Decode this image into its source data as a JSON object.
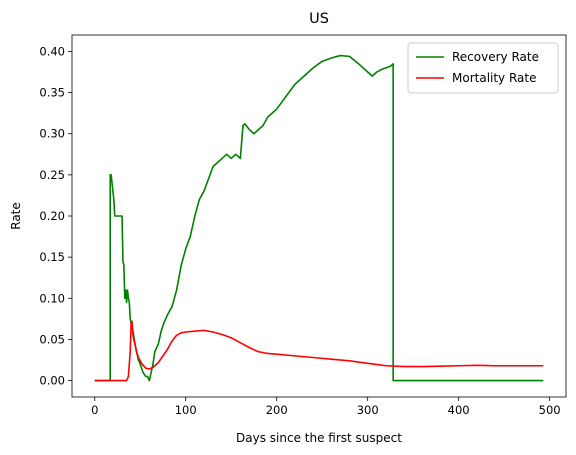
{
  "chart_data": {
    "type": "line",
    "title": "US",
    "xlabel": "Days since the first suspect",
    "ylabel": "Rate",
    "xlim": [
      -25,
      518
    ],
    "ylim": [
      -0.02,
      0.42
    ],
    "xticks": [
      0,
      100,
      200,
      300,
      400,
      500
    ],
    "xtick_labels": [
      "0",
      "100",
      "200",
      "300",
      "400",
      "500"
    ],
    "yticks": [
      0.0,
      0.05,
      0.1,
      0.15,
      0.2,
      0.25,
      0.3,
      0.35,
      0.4
    ],
    "ytick_labels": [
      "0.00",
      "0.05",
      "0.10",
      "0.15",
      "0.20",
      "0.25",
      "0.30",
      "0.35",
      "0.40"
    ],
    "grid": false,
    "legend_position": "upper right",
    "series": [
      {
        "name": "Recovery Rate",
        "color": "#008000",
        "x": [
          0,
          17,
          17,
          18,
          20,
          21,
          22,
          30,
          31,
          32,
          33,
          34,
          35,
          36,
          37,
          38,
          39,
          40,
          42,
          45,
          48,
          50,
          53,
          56,
          58,
          60,
          62,
          64,
          66,
          68,
          70,
          73,
          76,
          80,
          85,
          90,
          95,
          100,
          105,
          110,
          115,
          120,
          125,
          130,
          135,
          140,
          145,
          150,
          155,
          160,
          163,
          165,
          170,
          175,
          180,
          185,
          190,
          200,
          210,
          220,
          230,
          240,
          250,
          260,
          270,
          280,
          290,
          300,
          305,
          310,
          315,
          320,
          325,
          328,
          328,
          400,
          493
        ],
        "y": [
          0.0,
          0.0,
          0.25,
          0.25,
          0.23,
          0.22,
          0.2,
          0.2,
          0.145,
          0.14,
          0.1,
          0.11,
          0.095,
          0.11,
          0.1,
          0.095,
          0.075,
          0.07,
          0.06,
          0.04,
          0.025,
          0.02,
          0.01,
          0.005,
          0.005,
          0.0,
          0.01,
          0.02,
          0.035,
          0.04,
          0.045,
          0.06,
          0.07,
          0.08,
          0.09,
          0.11,
          0.14,
          0.16,
          0.175,
          0.2,
          0.22,
          0.23,
          0.245,
          0.26,
          0.265,
          0.27,
          0.275,
          0.27,
          0.275,
          0.27,
          0.31,
          0.312,
          0.305,
          0.3,
          0.305,
          0.31,
          0.32,
          0.33,
          0.345,
          0.36,
          0.37,
          0.38,
          0.388,
          0.392,
          0.395,
          0.394,
          0.385,
          0.375,
          0.37,
          0.375,
          0.378,
          0.38,
          0.382,
          0.385,
          0.0,
          0.0,
          0.0
        ]
      },
      {
        "name": "Mortality Rate",
        "color": "#ff0000",
        "x": [
          0,
          35,
          37,
          38,
          39,
          40,
          41,
          42,
          44,
          46,
          48,
          52,
          56,
          60,
          64,
          70,
          75,
          80,
          85,
          90,
          95,
          100,
          110,
          120,
          130,
          140,
          150,
          160,
          170,
          180,
          190,
          200,
          220,
          240,
          260,
          280,
          300,
          320,
          340,
          360,
          380,
          400,
          420,
          440,
          460,
          480,
          493
        ],
        "y": [
          0.0,
          0.0,
          0.005,
          0.02,
          0.035,
          0.07,
          0.072,
          0.055,
          0.045,
          0.035,
          0.028,
          0.02,
          0.015,
          0.014,
          0.016,
          0.022,
          0.03,
          0.038,
          0.048,
          0.055,
          0.058,
          0.059,
          0.06,
          0.061,
          0.059,
          0.056,
          0.052,
          0.046,
          0.04,
          0.035,
          0.033,
          0.032,
          0.03,
          0.028,
          0.026,
          0.024,
          0.021,
          0.018,
          0.017,
          0.017,
          0.0175,
          0.018,
          0.0185,
          0.018,
          0.018,
          0.018,
          0.018
        ]
      }
    ]
  }
}
